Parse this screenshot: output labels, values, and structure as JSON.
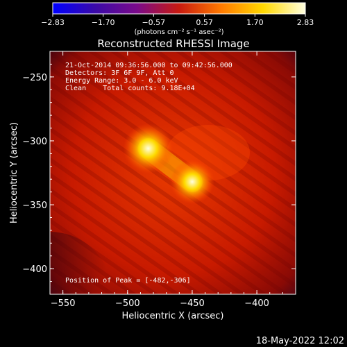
{
  "chart_data": {
    "type": "heatmap",
    "title": "Reconstructed RHESSI Image",
    "xlabel": "Heliocentric X (arcsec)",
    "ylabel": "Heliocentric Y (arcsec)",
    "xlim": [
      -560,
      -370
    ],
    "ylim": [
      -420,
      -230
    ],
    "xticks": [
      -550,
      -500,
      -450,
      -400
    ],
    "yticks": [
      -250,
      -300,
      -350,
      -400
    ],
    "colorbar": {
      "min": -2.83,
      "max": 2.83,
      "ticks": [
        -2.83,
        -1.7,
        -0.57,
        0.57,
        1.7,
        2.83
      ],
      "tick_labels": [
        "-2.83",
        "-1.70",
        "-0.57",
        "0.57",
        "1.70",
        "2.83"
      ],
      "label": "(photons cm⁻² s⁻¹ asec⁻²)",
      "colormap": [
        "#0000ff",
        "#3a0aa8",
        "#7a0a8a",
        "#c81a10",
        "#ff7a00",
        "#ffd800",
        "#ffffe0"
      ]
    },
    "sources": [
      {
        "x": -484,
        "y": -306,
        "intensity": 2.83
      },
      {
        "x": -450,
        "y": -332,
        "intensity": 2.3
      }
    ],
    "background_level": 0.9
  },
  "annotations": {
    "time_range": "21-Oct-2014 09:36:56.000 to 09:42:56.000",
    "detectors": "Detectors: 3F 6F 9F, Att 0",
    "energy": "Energy Range: 3.0 - 6.0 keV",
    "clean": "Clean    Total counts: 9.18E+04",
    "peak": "Position of Peak = [-482,-306]"
  },
  "footer": {
    "date": "18-May-2022 12:02"
  }
}
